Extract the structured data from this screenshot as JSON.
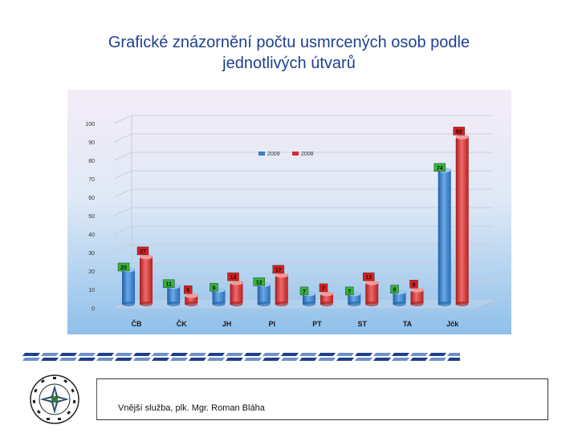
{
  "slide": {
    "title_line1": "Grafické znázornění počtu usmrcených osob podle",
    "title_line2": "jednotlivých útvarů",
    "footer": "Vnější služba, plk. Mgr. Roman Bláha"
  },
  "colors": {
    "title": "#1f3f8f",
    "series_2009": "#3b7fc4",
    "series_2008": "#d42b2b",
    "label_2009_bg": "#33b33a",
    "label_2008_bg": "#d81e1e"
  },
  "chart_data": {
    "type": "bar",
    "categories": [
      "ČB",
      "ČK",
      "JH",
      "PI",
      "PT",
      "ST",
      "TA",
      "Jčk"
    ],
    "series": [
      {
        "name": "2009",
        "values": [
          20,
          11,
          9,
          12,
          7,
          7,
          8,
          74
        ]
      },
      {
        "name": "2008",
        "values": [
          27,
          6,
          13,
          17,
          7,
          13,
          9,
          92
        ]
      }
    ],
    "yticks": [
      "0",
      "10",
      "20",
      "30",
      "40",
      "50",
      "60",
      "70",
      "80",
      "90",
      "100"
    ],
    "ylim": [
      0,
      100
    ],
    "grid": true,
    "legend_position": "top-center",
    "title": "",
    "xlabel": "",
    "ylabel": ""
  }
}
